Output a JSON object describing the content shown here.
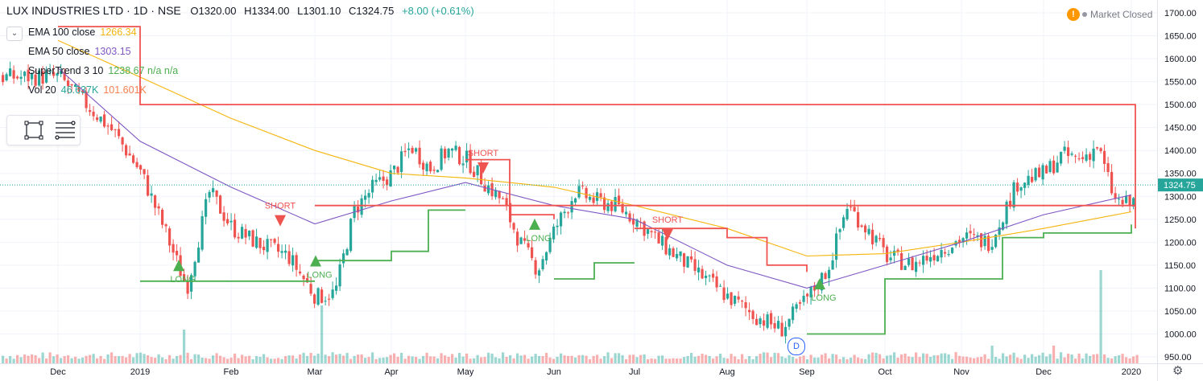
{
  "header": {
    "symbol": "LUX INDUSTRIES LTD · 1D · NSE",
    "open": "O1320.00",
    "high": "H1334.00",
    "low": "L1301.10",
    "close": "C1324.75",
    "change": "+8.00 (+0.61%)"
  },
  "legend": [
    {
      "label": "EMA 100 close",
      "value": "1266.34",
      "color": "#f5b50c"
    },
    {
      "label": "EMA 50 close",
      "value": "1303.15",
      "color": "#7e57c2"
    },
    {
      "label": "SuperTrend 3 10",
      "value": "1238.67  n/a  n/a",
      "color": "#4caf50"
    },
    {
      "label": "Vol 20",
      "value": "46.637K",
      "value2": "101.601K",
      "color": "#26a69a",
      "color2": "#f57f4e"
    }
  ],
  "market_status": "Market Closed",
  "dividend_marker": "D",
  "chart_data": {
    "type": "candlestick",
    "title": "LUX INDUSTRIES LTD · 1D · NSE",
    "ylim": [
      950,
      1700
    ],
    "y_ticks": [
      "1700.00",
      "1650.00",
      "1600.00",
      "1550.00",
      "1500.00",
      "1450.00",
      "1400.00",
      "1350.00",
      "1300.00",
      "1250.00",
      "1200.00",
      "1150.00",
      "1100.00",
      "1050.00",
      "1000.00",
      "950.00"
    ],
    "x_ticks": [
      "Dec",
      "2019",
      "Feb",
      "Mar",
      "Apr",
      "May",
      "Jun",
      "Jul",
      "Aug",
      "Sep",
      "Oct",
      "Nov",
      "Dec",
      "2020"
    ],
    "last_price": "1324.75",
    "colors": {
      "up": "#26a69a",
      "down": "#ef5350",
      "ema100": "#f5b50c",
      "ema50": "#7e57c2",
      "supertrend_up": "#4caf50",
      "supertrend_down": "#ef5350"
    },
    "price_path": [
      [
        "Dec",
        1560
      ],
      [
        "Dec",
        1500
      ],
      [
        "Dec",
        1440
      ],
      [
        "2019",
        1350
      ],
      [
        "2019",
        1230
      ],
      [
        "2019",
        1100
      ],
      [
        "2019",
        1310
      ],
      [
        "Feb",
        1230
      ],
      [
        "Feb",
        1195
      ],
      [
        "Feb",
        1170
      ],
      [
        "Mar",
        1080
      ],
      [
        "Mar",
        1090
      ],
      [
        "Mar",
        1270
      ],
      [
        "Mar",
        1320
      ],
      [
        "Apr",
        1350
      ],
      [
        "Apr",
        1410
      ],
      [
        "Apr",
        1360
      ],
      [
        "Apr",
        1400
      ],
      [
        "May",
        1380
      ],
      [
        "May",
        1330
      ],
      [
        "May",
        1290
      ],
      [
        "May",
        1200
      ],
      [
        "May",
        1140
      ],
      [
        "Jun",
        1230
      ],
      [
        "Jun",
        1310
      ],
      [
        "Jun",
        1290
      ],
      [
        "Jun",
        1280
      ],
      [
        "Jul",
        1250
      ],
      [
        "Jul",
        1200
      ],
      [
        "Jul",
        1160
      ],
      [
        "Jul",
        1120
      ],
      [
        "Aug",
        1080
      ],
      [
        "Aug",
        1040
      ],
      [
        "Aug",
        1010
      ],
      [
        "Sep",
        1080
      ],
      [
        "Sep",
        1140
      ],
      [
        "Sep",
        1280
      ],
      [
        "Sep",
        1230
      ],
      [
        "Oct",
        1170
      ],
      [
        "Oct",
        1150
      ],
      [
        "Oct",
        1180
      ],
      [
        "Nov",
        1210
      ],
      [
        "Nov",
        1200
      ],
      [
        "Nov",
        1330
      ],
      [
        "Dec",
        1350
      ],
      [
        "Dec",
        1390
      ],
      [
        "Dec",
        1380
      ],
      [
        "Dec",
        1410
      ],
      [
        "Dec",
        1290
      ],
      [
        "2020",
        1280
      ],
      [
        "2020",
        1324.75
      ]
    ],
    "ema100_path": [
      [
        "Dec",
        1640
      ],
      [
        "2019",
        1560
      ],
      [
        "Feb",
        1470
      ],
      [
        "Mar",
        1400
      ],
      [
        "Apr",
        1350
      ],
      [
        "May",
        1340
      ],
      [
        "Jun",
        1320
      ],
      [
        "Jul",
        1280
      ],
      [
        "Aug",
        1230
      ],
      [
        "Sep",
        1170
      ],
      [
        "Oct",
        1175
      ],
      [
        "Nov",
        1200
      ],
      [
        "Dec",
        1230
      ],
      [
        "2020",
        1266.34
      ]
    ],
    "ema50_path": [
      [
        "Dec",
        1580
      ],
      [
        "2019",
        1420
      ],
      [
        "Feb",
        1320
      ],
      [
        "Mar",
        1240
      ],
      [
        "Apr",
        1290
      ],
      [
        "May",
        1330
      ],
      [
        "Jun",
        1280
      ],
      [
        "Jul",
        1250
      ],
      [
        "Aug",
        1150
      ],
      [
        "Sep",
        1100
      ],
      [
        "Oct",
        1150
      ],
      [
        "Nov",
        1200
      ],
      [
        "Dec",
        1260
      ],
      [
        "2020",
        1303.15
      ]
    ],
    "supertrend_segments": [
      {
        "trend": "down",
        "points": [
          [
            "Dec",
            1670
          ],
          [
            "2019",
            1500
          ],
          [
            "2019",
            1270
          ]
        ]
      },
      {
        "trend": "up",
        "points": [
          [
            "2019",
            1115
          ],
          [
            "Feb",
            1115
          ],
          [
            "Mar",
            1115
          ]
        ]
      },
      {
        "trend": "down",
        "points": [
          [
            "Mar",
            1280
          ],
          [
            "Mar",
            1230
          ]
        ]
      },
      {
        "trend": "up",
        "points": [
          [
            "Mar",
            1160
          ],
          [
            "Apr",
            1180
          ],
          [
            "Apr",
            1270
          ],
          [
            "May",
            1270
          ]
        ]
      },
      {
        "trend": "down",
        "points": [
          [
            "May",
            1380
          ],
          [
            "May",
            1260
          ],
          [
            "Jun",
            1250
          ]
        ]
      },
      {
        "trend": "up",
        "points": [
          [
            "Jun",
            1120
          ],
          [
            "Jun",
            1155
          ],
          [
            "Jul",
            1155
          ]
        ]
      },
      {
        "trend": "down",
        "points": [
          [
            "Jul",
            1230
          ],
          [
            "Aug",
            1210
          ],
          [
            "Aug",
            1150
          ],
          [
            "Sep",
            1135
          ]
        ]
      },
      {
        "trend": "up",
        "points": [
          [
            "Sep",
            1000
          ],
          [
            "Oct",
            1120
          ],
          [
            "Nov",
            1120
          ],
          [
            "Nov",
            1210
          ],
          [
            "Dec",
            1220
          ],
          [
            "2020",
            1238.67
          ]
        ]
      }
    ],
    "signals": [
      {
        "label": "LONG",
        "x": "2019",
        "price": 1060,
        "type": "long"
      },
      {
        "label": "SHORT",
        "x": "Feb",
        "price": 1280,
        "type": "short"
      },
      {
        "label": "LONG",
        "x": "Mar",
        "price": 1070,
        "type": "long"
      },
      {
        "label": "SHORT",
        "x": "May",
        "price": 1395,
        "type": "short"
      },
      {
        "label": "LONG",
        "x": "Jun",
        "price": 1150,
        "type": "long"
      },
      {
        "label": "SHORT",
        "x": "Jul",
        "price": 1250,
        "type": "short"
      },
      {
        "label": "LONG",
        "x": "Sep",
        "price": 1020,
        "type": "long"
      }
    ]
  }
}
